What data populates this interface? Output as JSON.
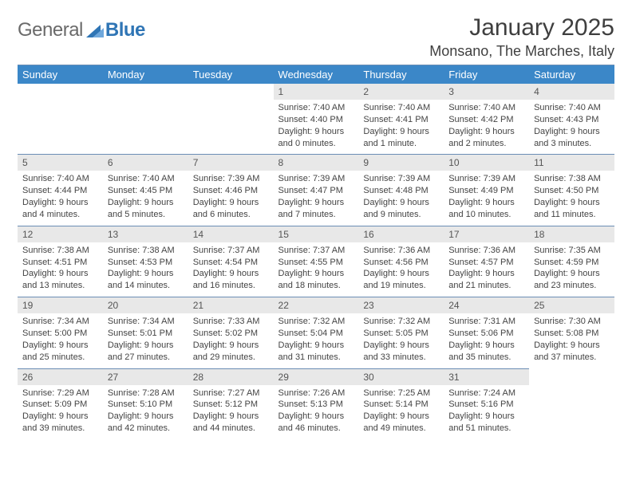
{
  "logo": {
    "general": "General",
    "blue": "Blue"
  },
  "title": "January 2025",
  "location": "Monsano, The Marches, Italy",
  "colors": {
    "header_bg": "#3b87c8",
    "header_text": "#ffffff",
    "daynum_bg": "#e8e8e8",
    "rule": "#6b8db5",
    "logo_blue": "#2f75b5",
    "text": "#3f3f3f"
  },
  "columns": [
    "Sunday",
    "Monday",
    "Tuesday",
    "Wednesday",
    "Thursday",
    "Friday",
    "Saturday"
  ],
  "weeks": [
    [
      null,
      null,
      null,
      {
        "n": "1",
        "sr": "7:40 AM",
        "ss": "4:40 PM",
        "dl": "9 hours and 0 minutes."
      },
      {
        "n": "2",
        "sr": "7:40 AM",
        "ss": "4:41 PM",
        "dl": "9 hours and 1 minute."
      },
      {
        "n": "3",
        "sr": "7:40 AM",
        "ss": "4:42 PM",
        "dl": "9 hours and 2 minutes."
      },
      {
        "n": "4",
        "sr": "7:40 AM",
        "ss": "4:43 PM",
        "dl": "9 hours and 3 minutes."
      }
    ],
    [
      {
        "n": "5",
        "sr": "7:40 AM",
        "ss": "4:44 PM",
        "dl": "9 hours and 4 minutes."
      },
      {
        "n": "6",
        "sr": "7:40 AM",
        "ss": "4:45 PM",
        "dl": "9 hours and 5 minutes."
      },
      {
        "n": "7",
        "sr": "7:39 AM",
        "ss": "4:46 PM",
        "dl": "9 hours and 6 minutes."
      },
      {
        "n": "8",
        "sr": "7:39 AM",
        "ss": "4:47 PM",
        "dl": "9 hours and 7 minutes."
      },
      {
        "n": "9",
        "sr": "7:39 AM",
        "ss": "4:48 PM",
        "dl": "9 hours and 9 minutes."
      },
      {
        "n": "10",
        "sr": "7:39 AM",
        "ss": "4:49 PM",
        "dl": "9 hours and 10 minutes."
      },
      {
        "n": "11",
        "sr": "7:38 AM",
        "ss": "4:50 PM",
        "dl": "9 hours and 11 minutes."
      }
    ],
    [
      {
        "n": "12",
        "sr": "7:38 AM",
        "ss": "4:51 PM",
        "dl": "9 hours and 13 minutes."
      },
      {
        "n": "13",
        "sr": "7:38 AM",
        "ss": "4:53 PM",
        "dl": "9 hours and 14 minutes."
      },
      {
        "n": "14",
        "sr": "7:37 AM",
        "ss": "4:54 PM",
        "dl": "9 hours and 16 minutes."
      },
      {
        "n": "15",
        "sr": "7:37 AM",
        "ss": "4:55 PM",
        "dl": "9 hours and 18 minutes."
      },
      {
        "n": "16",
        "sr": "7:36 AM",
        "ss": "4:56 PM",
        "dl": "9 hours and 19 minutes."
      },
      {
        "n": "17",
        "sr": "7:36 AM",
        "ss": "4:57 PM",
        "dl": "9 hours and 21 minutes."
      },
      {
        "n": "18",
        "sr": "7:35 AM",
        "ss": "4:59 PM",
        "dl": "9 hours and 23 minutes."
      }
    ],
    [
      {
        "n": "19",
        "sr": "7:34 AM",
        "ss": "5:00 PM",
        "dl": "9 hours and 25 minutes."
      },
      {
        "n": "20",
        "sr": "7:34 AM",
        "ss": "5:01 PM",
        "dl": "9 hours and 27 minutes."
      },
      {
        "n": "21",
        "sr": "7:33 AM",
        "ss": "5:02 PM",
        "dl": "9 hours and 29 minutes."
      },
      {
        "n": "22",
        "sr": "7:32 AM",
        "ss": "5:04 PM",
        "dl": "9 hours and 31 minutes."
      },
      {
        "n": "23",
        "sr": "7:32 AM",
        "ss": "5:05 PM",
        "dl": "9 hours and 33 minutes."
      },
      {
        "n": "24",
        "sr": "7:31 AM",
        "ss": "5:06 PM",
        "dl": "9 hours and 35 minutes."
      },
      {
        "n": "25",
        "sr": "7:30 AM",
        "ss": "5:08 PM",
        "dl": "9 hours and 37 minutes."
      }
    ],
    [
      {
        "n": "26",
        "sr": "7:29 AM",
        "ss": "5:09 PM",
        "dl": "9 hours and 39 minutes."
      },
      {
        "n": "27",
        "sr": "7:28 AM",
        "ss": "5:10 PM",
        "dl": "9 hours and 42 minutes."
      },
      {
        "n": "28",
        "sr": "7:27 AM",
        "ss": "5:12 PM",
        "dl": "9 hours and 44 minutes."
      },
      {
        "n": "29",
        "sr": "7:26 AM",
        "ss": "5:13 PM",
        "dl": "9 hours and 46 minutes."
      },
      {
        "n": "30",
        "sr": "7:25 AM",
        "ss": "5:14 PM",
        "dl": "9 hours and 49 minutes."
      },
      {
        "n": "31",
        "sr": "7:24 AM",
        "ss": "5:16 PM",
        "dl": "9 hours and 51 minutes."
      },
      null
    ]
  ],
  "labels": {
    "sunrise": "Sunrise:",
    "sunset": "Sunset:",
    "daylight": "Daylight:"
  }
}
